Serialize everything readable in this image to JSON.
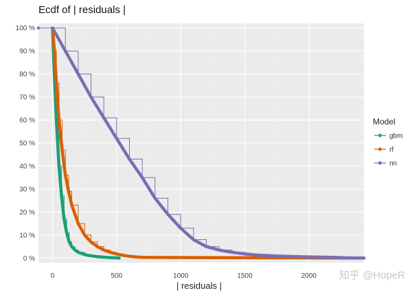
{
  "watermark": "知乎 @HopeR",
  "chart_data": {
    "type": "line",
    "title": "Ecdf of | residuals |",
    "xlabel": "| residuals |",
    "ylabel": "",
    "xlim": [
      -110,
      2430
    ],
    "ylim": [
      -0.02,
      1.02
    ],
    "x_ticks": [
      0,
      500,
      1000,
      1500,
      2000
    ],
    "y_ticks": [
      0,
      0.1,
      0.2,
      0.3,
      0.4,
      0.5,
      0.6,
      0.7,
      0.8,
      0.9,
      1.0
    ],
    "y_tick_labels": [
      "0 %",
      "10 %",
      "20 %",
      "30 %",
      "40 %",
      "50 %",
      "60 %",
      "70 %",
      "80 %",
      "90 %",
      "100 %"
    ],
    "grid": true,
    "legend": {
      "title": "Model",
      "placement": "right"
    },
    "series": [
      {
        "name": "gbm",
        "color": "#1b9e77",
        "x": [
          0,
          10,
          20,
          30,
          50,
          70,
          90,
          110,
          130,
          150,
          175,
          200,
          250,
          300,
          350,
          400,
          450,
          500,
          520
        ],
        "y": [
          1.0,
          0.85,
          0.72,
          0.6,
          0.4,
          0.27,
          0.17,
          0.11,
          0.07,
          0.05,
          0.035,
          0.025,
          0.015,
          0.01,
          0.006,
          0.004,
          0.002,
          0.001,
          0.0
        ]
      },
      {
        "name": "rf",
        "color": "#d95f02",
        "x": [
          0,
          15,
          30,
          50,
          75,
          100,
          125,
          150,
          200,
          250,
          300,
          350,
          400,
          450,
          500,
          550,
          600,
          650,
          700,
          730,
          2430
        ],
        "y": [
          1.0,
          0.9,
          0.76,
          0.6,
          0.47,
          0.36,
          0.29,
          0.23,
          0.15,
          0.1,
          0.07,
          0.05,
          0.035,
          0.025,
          0.018,
          0.012,
          0.008,
          0.005,
          0.003,
          0.0,
          0.0
        ]
      },
      {
        "name": "nn",
        "color": "#7570b3",
        "x": [
          -110,
          0,
          100,
          200,
          300,
          400,
          500,
          600,
          700,
          800,
          900,
          1000,
          1100,
          1200,
          1300,
          1400,
          1500,
          1600,
          1800,
          2000,
          2200,
          2300,
          2430
        ],
        "y": [
          1.0,
          1.0,
          0.9,
          0.8,
          0.7,
          0.61,
          0.52,
          0.43,
          0.35,
          0.26,
          0.19,
          0.13,
          0.08,
          0.05,
          0.035,
          0.025,
          0.018,
          0.013,
          0.008,
          0.005,
          0.003,
          0.001,
          0.0
        ]
      }
    ]
  }
}
